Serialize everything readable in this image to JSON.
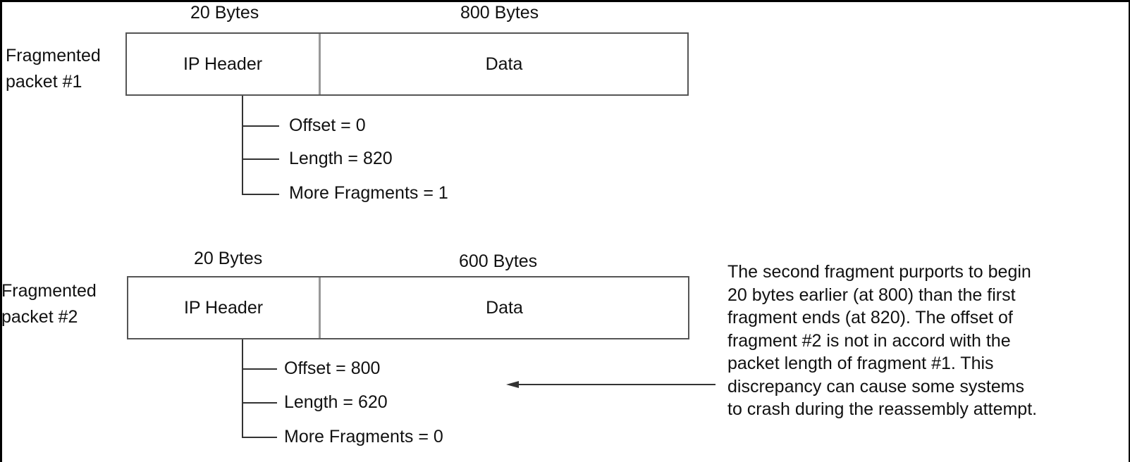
{
  "packet1": {
    "label_line1": "Fragmented",
    "label_line2": "packet #1",
    "header_size": "20 Bytes",
    "data_size": "800 Bytes",
    "header_cell": "IP Header",
    "data_cell": "Data",
    "fields": [
      "Offset = 0",
      "Length = 820",
      "More Fragments = 1"
    ]
  },
  "packet2": {
    "label_line1": "Fragmented",
    "label_line2": "packet #2",
    "header_size": "20 Bytes",
    "data_size": "600 Bytes",
    "header_cell": "IP Header",
    "data_cell": "Data",
    "fields": [
      "Offset = 800",
      "Length = 620",
      "More Fragments = 0"
    ]
  },
  "annotation": {
    "lines": [
      "The second fragment purports to begin",
      "20 bytes earlier (at 800) than the first",
      "fragment ends (at 820). The offset of",
      "fragment #2 is not in accord with the",
      "packet length of fragment #1. This",
      "discrepancy can cause some systems",
      "to crash during the reassembly attempt."
    ]
  }
}
